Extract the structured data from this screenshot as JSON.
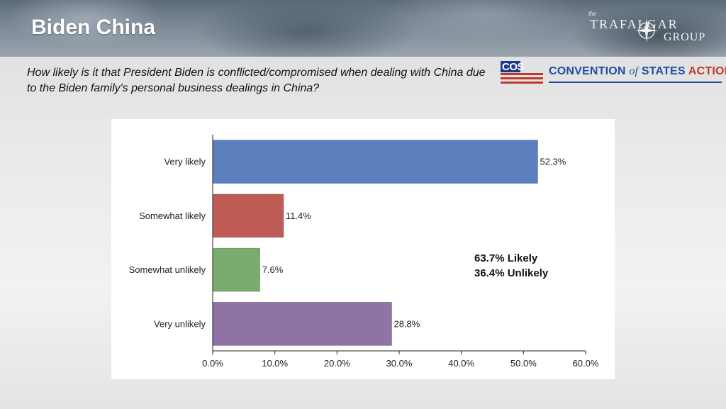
{
  "header": {
    "title": "Biden China",
    "brand_logo": {
      "word_the": "the",
      "line1": "TRAFALGAR",
      "line2": "GROUP",
      "icon": "compass-rose-icon"
    }
  },
  "question": "How likely is it that President Biden is conflicted/compromised when dealing with China due to the Biden family's personal business dealings in China?",
  "sponsor_logo": {
    "badge": "COS",
    "name_part1": "CONVENTION",
    "name_of": "of",
    "name_part2": "STATES",
    "name_part3": "ACTION",
    "colors": {
      "blue": "#1f4fa3",
      "red": "#c0392b"
    }
  },
  "chart_data": {
    "type": "bar",
    "orientation": "horizontal",
    "categories": [
      "Very likely",
      "Somewhat likely",
      "Somewhat unlikely",
      "Very unlikely"
    ],
    "values": [
      52.3,
      11.4,
      7.6,
      28.8
    ],
    "value_labels": [
      "52.3%",
      "11.4%",
      "7.6%",
      "28.8%"
    ],
    "colors": [
      "#5b80bd",
      "#bf5b55",
      "#7aab6f",
      "#8f72a6"
    ],
    "xlim": [
      0,
      60
    ],
    "xticks": [
      "0.0%",
      "10.0%",
      "20.0%",
      "30.0%",
      "40.0%",
      "50.0%",
      "60.0%"
    ],
    "grid": false,
    "annotations": [
      "63.7% Likely",
      "36.4% Unlikely"
    ]
  }
}
